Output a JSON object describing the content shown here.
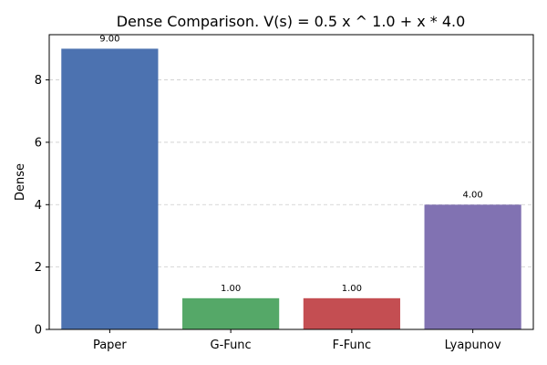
{
  "chart_data": {
    "type": "bar",
    "title": "Dense Comparison. V(s) = 0.5 x ^ 1.0 + x * 4.0",
    "xlabel": "",
    "ylabel": "Dense",
    "categories": [
      "Paper",
      "G-Func",
      "F-Func",
      "Lyapunov"
    ],
    "values": [
      9.0,
      1.0,
      1.0,
      4.0
    ],
    "data_labels": [
      "9.00",
      "1.00",
      "1.00",
      "4.00"
    ],
    "colors": [
      "#4c72b0",
      "#55a868",
      "#c44e52",
      "#8172b2"
    ],
    "ylim": [
      0,
      9.45
    ],
    "yticks": [
      0,
      2,
      4,
      6,
      8
    ],
    "ytick_labels": [
      "0",
      "2",
      "4",
      "6",
      "8"
    ],
    "grid": "y-dashed",
    "legend": "none"
  }
}
